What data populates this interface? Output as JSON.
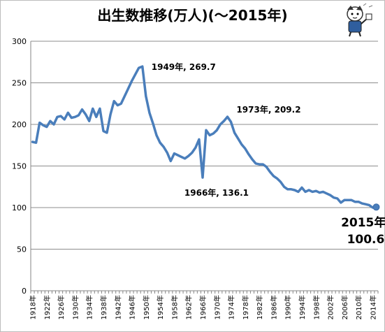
{
  "chart_data": {
    "type": "line",
    "title": "出生数推移(万人)(～2015年)",
    "ylim": [
      0,
      300
    ],
    "yticks": [
      0,
      50,
      100,
      150,
      200,
      250,
      300
    ],
    "grid": "horizontal",
    "legend": "none",
    "line_color": "#4a7ebb",
    "x_ticks": [
      "1918年",
      "1922年",
      "1926年",
      "1930年",
      "1934年",
      "1938年",
      "1942年",
      "1946年",
      "1950年",
      "1954年",
      "1958年",
      "1962年",
      "1966年",
      "1970年",
      "1974年",
      "1978年",
      "1982年",
      "1986年",
      "1990年",
      "1994年",
      "1998年",
      "2002年",
      "2006年",
      "2010年",
      "2014年"
    ],
    "x": [
      1918,
      1919,
      1920,
      1921,
      1922,
      1923,
      1924,
      1925,
      1926,
      1927,
      1928,
      1929,
      1930,
      1931,
      1932,
      1933,
      1934,
      1935,
      1936,
      1937,
      1938,
      1939,
      1940,
      1941,
      1942,
      1943,
      1944,
      1945,
      1946,
      1947,
      1948,
      1949,
      1950,
      1951,
      1952,
      1953,
      1954,
      1955,
      1956,
      1957,
      1958,
      1959,
      1960,
      1961,
      1962,
      1963,
      1964,
      1965,
      1966,
      1967,
      1968,
      1969,
      1970,
      1971,
      1972,
      1973,
      1974,
      1975,
      1976,
      1977,
      1978,
      1979,
      1980,
      1981,
      1982,
      1983,
      1984,
      1985,
      1986,
      1987,
      1988,
      1989,
      1990,
      1991,
      1992,
      1993,
      1994,
      1995,
      1996,
      1997,
      1998,
      1999,
      2000,
      2001,
      2002,
      2003,
      2004,
      2005,
      2006,
      2007,
      2008,
      2009,
      2010,
      2011,
      2012,
      2013,
      2014,
      2015
    ],
    "values": [
      179,
      178,
      202,
      199,
      197,
      204,
      200,
      209,
      210,
      206,
      214,
      208,
      209,
      211,
      218,
      212,
      204,
      219,
      209,
      219,
      192,
      190,
      212,
      228,
      223,
      225,
      234,
      243,
      252,
      260,
      268,
      269.7,
      234,
      214,
      201,
      187,
      178,
      173,
      166,
      156,
      165,
      163,
      161,
      159,
      162,
      166,
      172,
      182,
      136.1,
      193,
      187,
      189,
      193,
      200,
      204,
      209.2,
      203,
      190,
      183,
      176,
      171,
      164,
      158,
      153,
      152,
      152,
      149,
      143,
      138,
      135,
      131,
      125,
      122,
      122,
      121,
      119,
      124,
      119,
      121,
      119,
      120,
      118,
      119,
      117,
      115,
      112,
      111,
      106,
      109,
      109,
      109,
      107,
      107,
      105,
      104,
      103,
      100,
      100.6
    ],
    "annotations": [
      {
        "x": 1949,
        "text": "1949年, 269.7",
        "style": "small"
      },
      {
        "x": 1973,
        "text": "1973年, 209.2",
        "style": "small"
      },
      {
        "x": 1966,
        "text": "1966年, 136.1",
        "style": "small"
      },
      {
        "x": 2015,
        "text": "2015年,",
        "text2": "100.6",
        "style": "big"
      }
    ]
  }
}
